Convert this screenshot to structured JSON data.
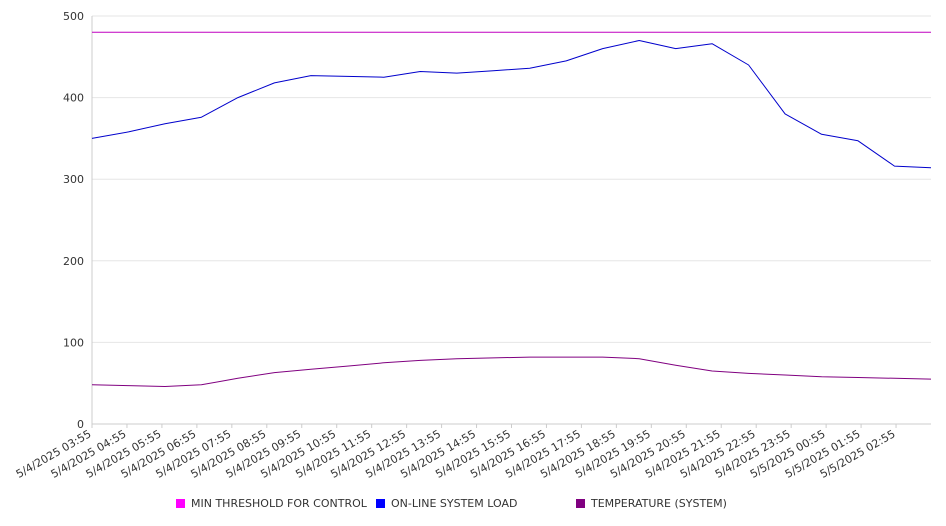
{
  "chart_data": {
    "type": "line",
    "ylim": [
      0,
      500
    ],
    "yticks": [
      0,
      100,
      200,
      300,
      400,
      500
    ],
    "grid": true,
    "legend_position": "bottom",
    "x_tick_labels": [
      "5/4/2025 03:55",
      "5/4/2025 04:55",
      "5/4/2025 05:55",
      "5/4/2025 06:55",
      "5/4/2025 07:55",
      "5/4/2025 08:55",
      "5/4/2025 09:55",
      "5/4/2025 10:55",
      "5/4/2025 11:55",
      "5/4/2025 12:55",
      "5/4/2025 13:55",
      "5/4/2025 14:55",
      "5/4/2025 15:55",
      "5/4/2025 16:55",
      "5/4/2025 17:55",
      "5/4/2025 18:55",
      "5/4/2025 19:55",
      "5/4/2025 20:55",
      "5/4/2025 21:55",
      "5/4/2025 22:55",
      "5/4/2025 23:55",
      "5/5/2025 00:55",
      "5/5/2025 01:55",
      "5/5/2025 02:55"
    ],
    "series": [
      {
        "name": "MIN THRESHOLD FOR CONTROL",
        "color": "#c000c0",
        "values": [
          480,
          480,
          480,
          480,
          480,
          480,
          480,
          480,
          480,
          480,
          480,
          480,
          480,
          480,
          480,
          480,
          480,
          480,
          480,
          480,
          480,
          480,
          480,
          480
        ]
      },
      {
        "name": "ON-LINE SYSTEM LOAD",
        "color": "#0000cc",
        "values": [
          350,
          358,
          368,
          376,
          400,
          418,
          427,
          426,
          425,
          432,
          430,
          433,
          436,
          445,
          460,
          470,
          460,
          466,
          440,
          380,
          355,
          347,
          316,
          314
        ]
      },
      {
        "name": "TEMPERATURE (SYSTEM)",
        "color": "#800080",
        "values": [
          48,
          47,
          46,
          48,
          56,
          63,
          67,
          71,
          75,
          78,
          80,
          81,
          82,
          82,
          82,
          80,
          72,
          65,
          62,
          60,
          58,
          57,
          56,
          55
        ]
      }
    ]
  },
  "legend": {
    "items": [
      {
        "label": "MIN THRESHOLD FOR CONTROL",
        "color": "#ff00ff"
      },
      {
        "label": "ON-LINE SYSTEM LOAD",
        "color": "#0000ff"
      },
      {
        "label": "TEMPERATURE (SYSTEM)",
        "color": "#800080"
      }
    ]
  }
}
